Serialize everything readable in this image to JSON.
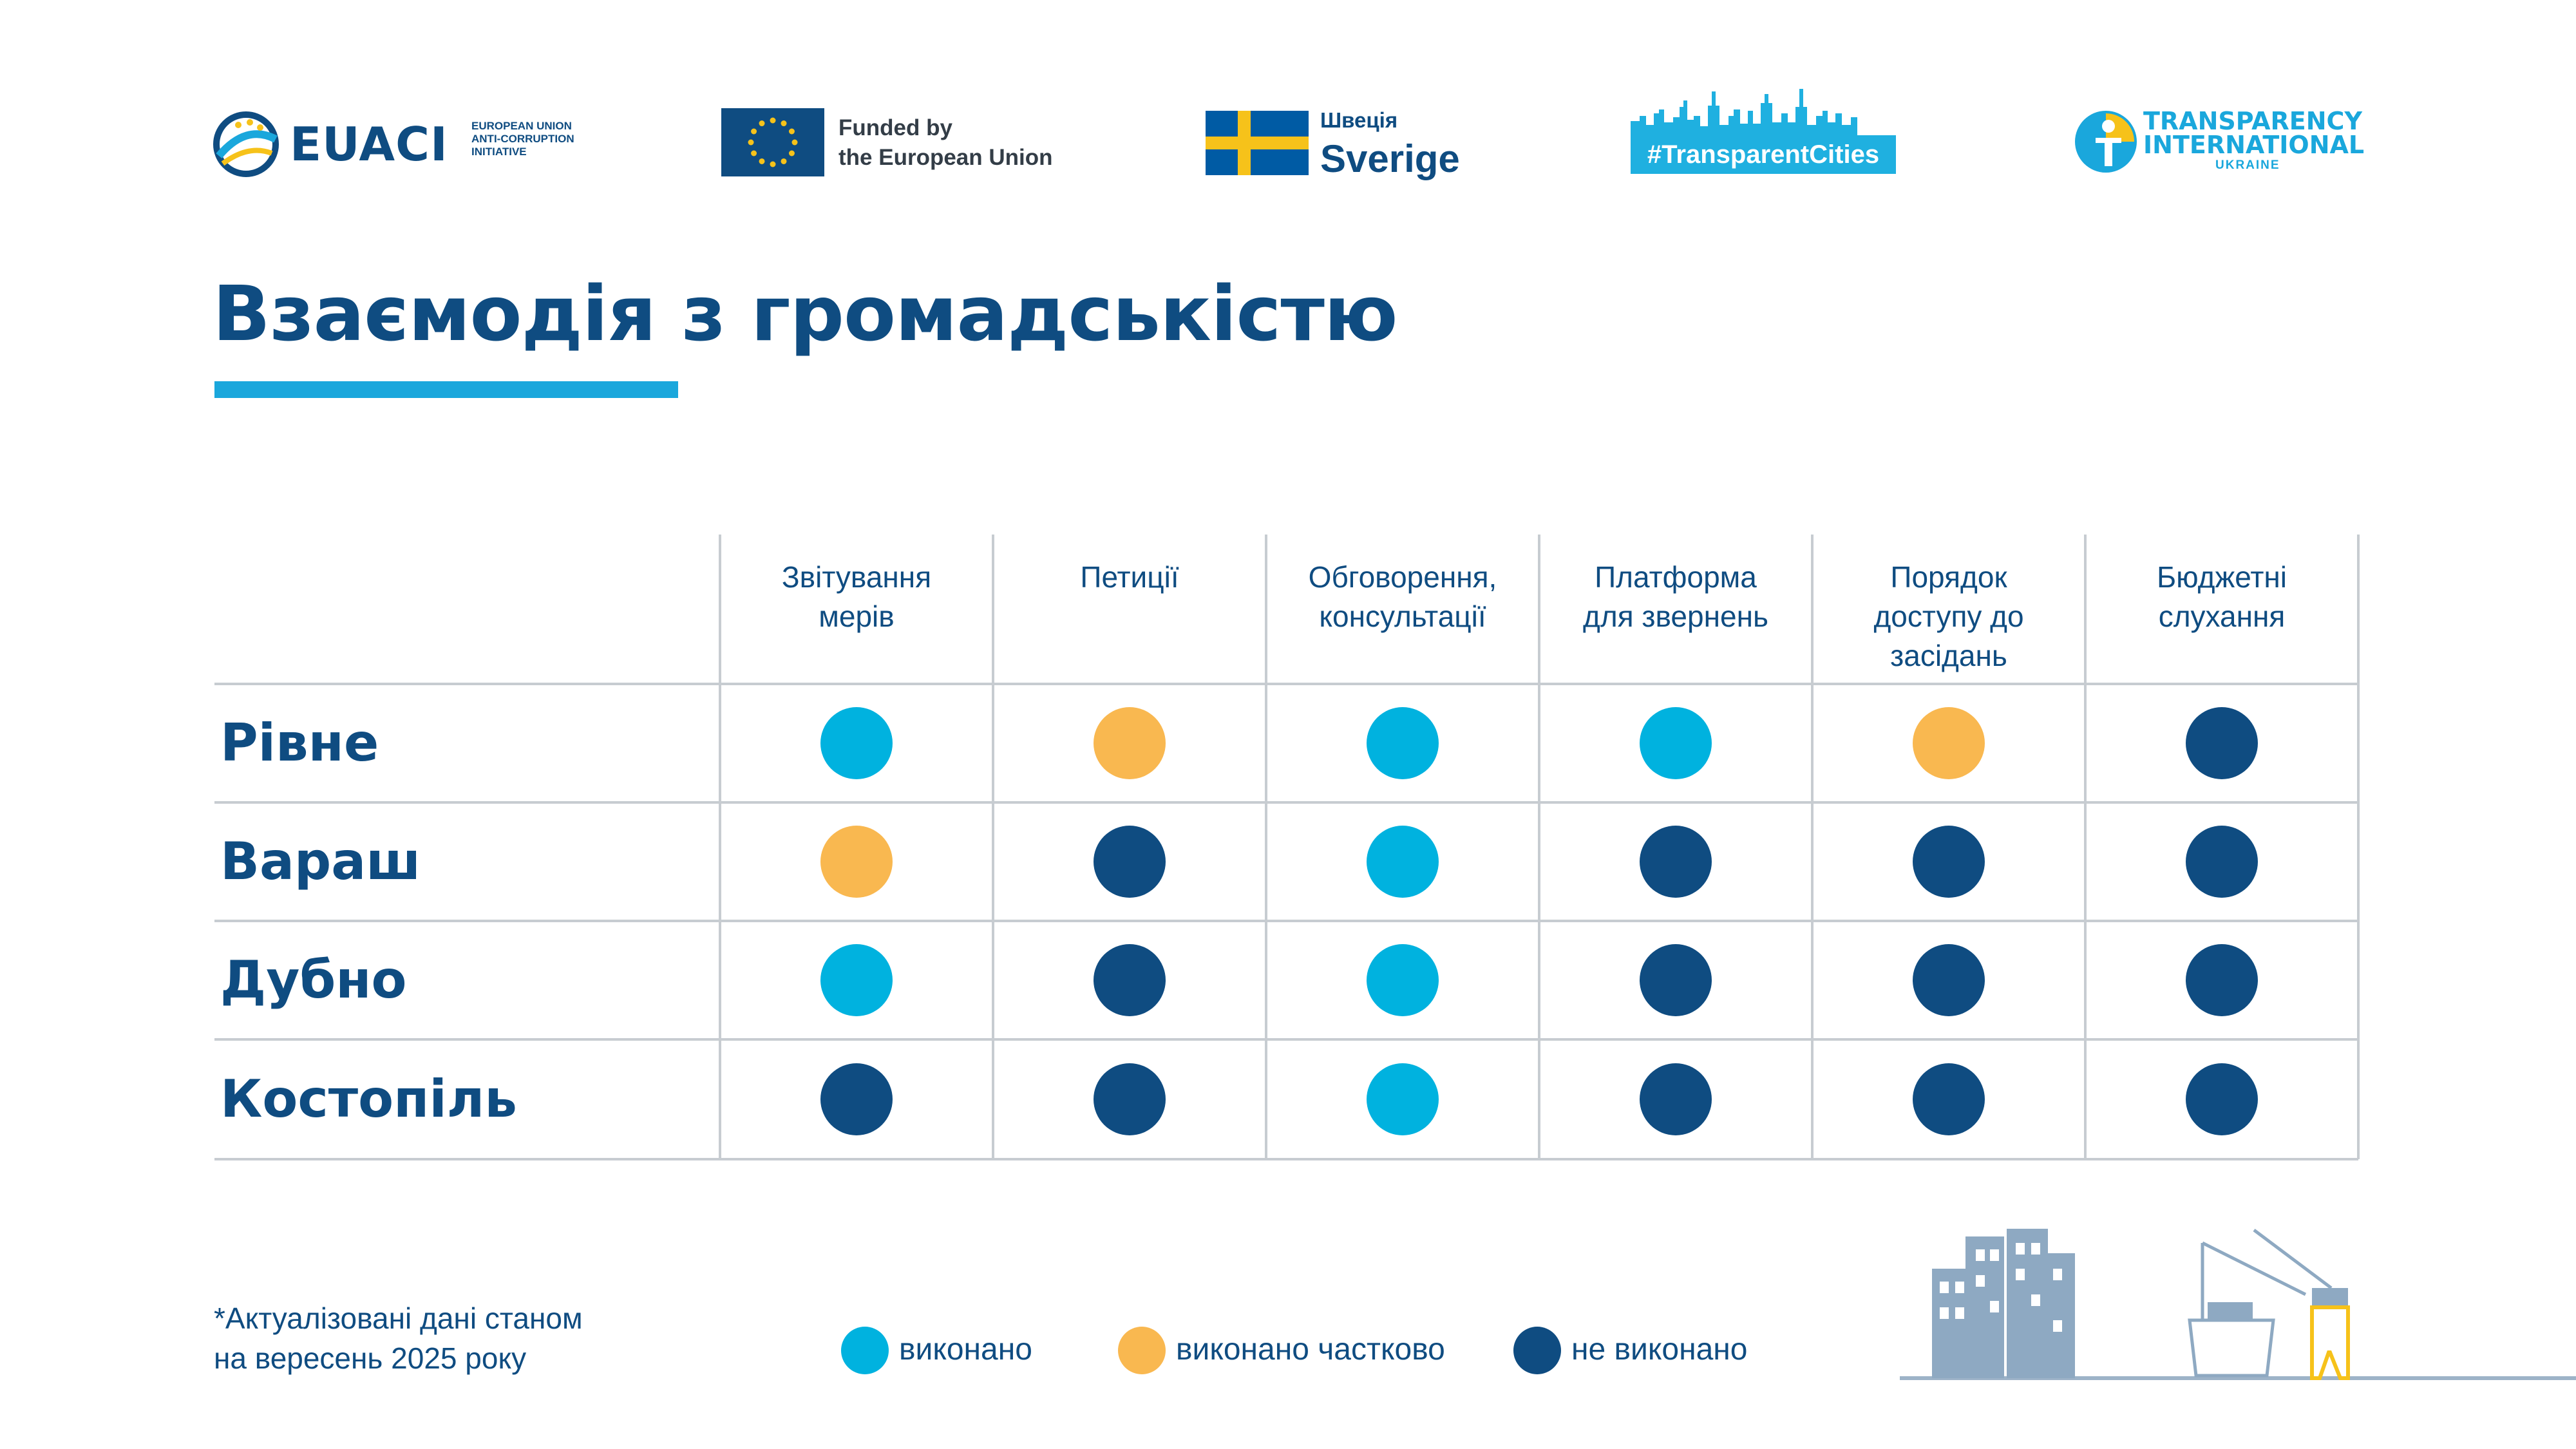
{
  "logos": {
    "euaci": {
      "name": "EUACI",
      "subtitle": [
        "EUROPEAN UNION",
        "ANTI-CORRUPTION",
        "INITIATIVE"
      ]
    },
    "eu": {
      "line1": "Funded by",
      "line2": "the European Union"
    },
    "sweden": {
      "small": "Швеція",
      "big": "Sverige"
    },
    "transparent_cities": {
      "label": "#TransparentCities"
    },
    "ti": {
      "line1": "TRANSPARENCY",
      "line2": "INTERNATIONAL",
      "line3": "UKRAINE"
    }
  },
  "title": "Взаємодія з громадськістю",
  "table": {
    "columns": [
      [
        "Звітування",
        "мерів"
      ],
      [
        "Петиції"
      ],
      [
        "Обговорення,",
        "консультації"
      ],
      [
        "Платформа",
        "для звернень"
      ],
      [
        "Порядок",
        "доступу до",
        "засідань"
      ],
      [
        "Бюджетні",
        "слухання"
      ]
    ],
    "rows": [
      {
        "city": "Рівне",
        "status": [
          "done",
          "partial",
          "done",
          "done",
          "partial",
          "not"
        ]
      },
      {
        "city": "Вараш",
        "status": [
          "partial",
          "not",
          "done",
          "not",
          "not",
          "not"
        ]
      },
      {
        "city": "Дубно",
        "status": [
          "done",
          "not",
          "done",
          "not",
          "not",
          "not"
        ]
      },
      {
        "city": "Костопіль",
        "status": [
          "not",
          "not",
          "done",
          "not",
          "not",
          "not"
        ]
      }
    ]
  },
  "status_colors": {
    "done": "#00b2df",
    "partial": "#f9b850",
    "not": "#0f4c81"
  },
  "legend": [
    {
      "status": "done",
      "label": "виконано"
    },
    {
      "status": "partial",
      "label": "виконано частково"
    },
    {
      "status": "not",
      "label": "не виконано"
    }
  ],
  "footnote": [
    "*Актуалізовані дані станом",
    "на вересень 2025 року"
  ]
}
